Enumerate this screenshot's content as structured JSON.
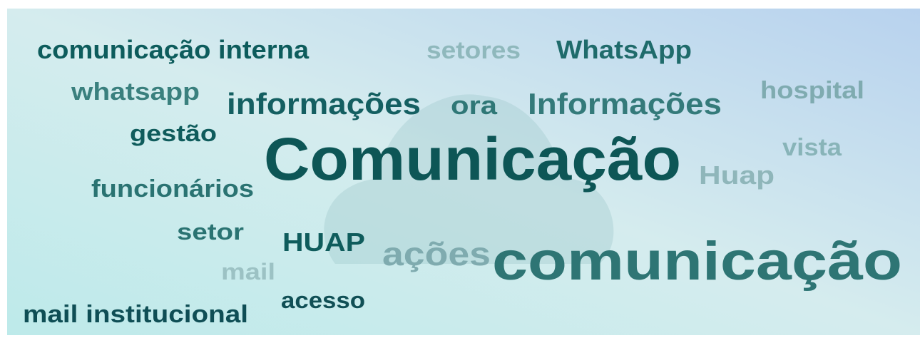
{
  "words": [
    "comunicação interna",
    "setores",
    "WhatsApp",
    "whatsapp",
    "informações",
    "ora",
    "Informações",
    "hospital",
    "gestão",
    "Comunicação",
    "vista",
    "Huap",
    "funcionários",
    "setor",
    "HUAP",
    "ações",
    "comunicação",
    "mail",
    "acesso",
    "mail institucional"
  ]
}
